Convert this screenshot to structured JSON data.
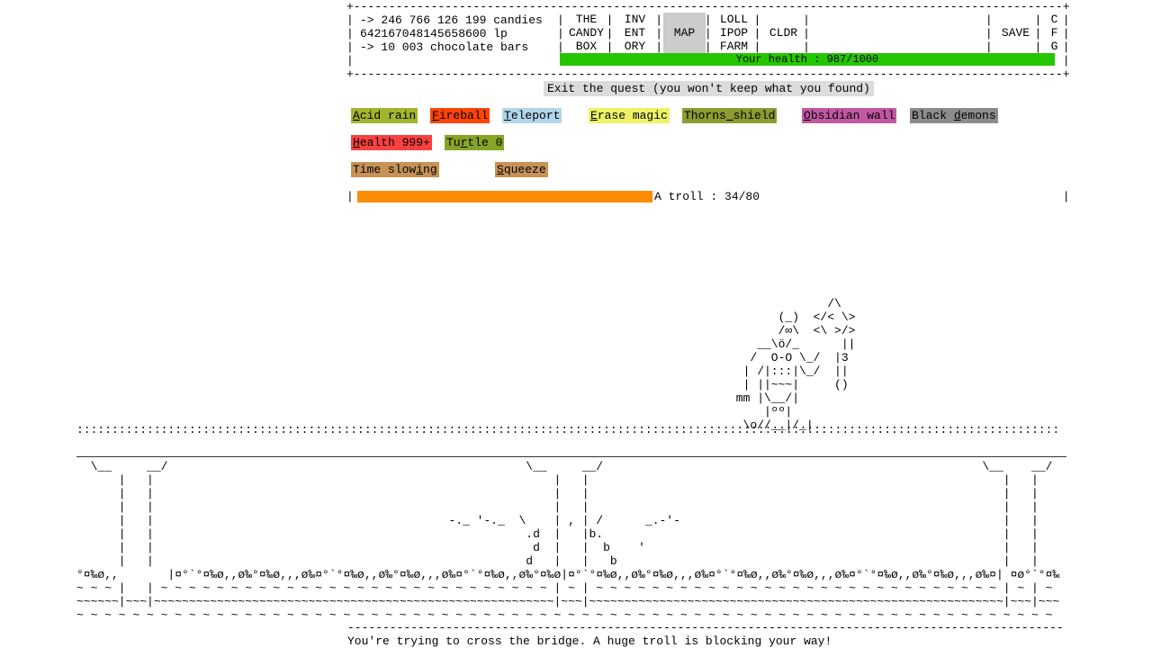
{
  "hud": {
    "resources_text": "-> 246 766 126 199 candies\n642167048145658600 lp\n-> 10 003 chocolate bars",
    "tabs": [
      {
        "id": "the-candy-box",
        "label": "THE\nCANDY\nBOX"
      },
      {
        "id": "inventory",
        "label": "INV\nENT\nORY"
      },
      {
        "id": "map",
        "label": "MAP",
        "active": true
      },
      {
        "id": "lollipop-farm",
        "label": "LOLL\nIPOP\nFARM"
      },
      {
        "id": "cauldron",
        "label": "CLDR"
      },
      {
        "id": "save",
        "label": "SAVE"
      },
      {
        "id": "config",
        "label": "C\nF\nG"
      }
    ],
    "active_tab_bg": "#cccccc",
    "health": {
      "label": "Your health : 987/1000",
      "color": "#25c600"
    }
  },
  "quest": {
    "exit_label": "Exit the quest (you won't keep what you found)",
    "enemy": {
      "label": "A troll : 34/80",
      "hp": 34,
      "hp_max": 80,
      "bar_color": "#ff8c00"
    },
    "message": "You're trying to cross the bridge. A huge troll is blocking your way!"
  },
  "spells": [
    {
      "id": "acid-rain",
      "label": "Acid rain",
      "key_index": 0,
      "color": "#a3b52c"
    },
    {
      "id": "fireball",
      "label": "Fireball",
      "key_index": 0,
      "color": "#ff4505"
    },
    {
      "id": "teleport",
      "label": "Teleport",
      "key_index": 0,
      "color": "#b2d6e9"
    },
    {
      "id": "erase-magic",
      "label": "Erase magic",
      "key_index": 0,
      "color": "#eef266"
    },
    {
      "id": "thorns-shield",
      "label": "Thorns shield",
      "key_index": 6,
      "color": "#8d9b31"
    },
    {
      "id": "obsidian-wall",
      "label": "Obsidian wall",
      "key_index": 0,
      "color": "#c158a2"
    },
    {
      "id": "black-demons",
      "label": "Black demons",
      "key_index": 6,
      "color": "#8c8c8c"
    },
    {
      "id": "health-999",
      "label": "Health 999+",
      "key_index": 0,
      "color": "#fb4040"
    },
    {
      "id": "turtle-0",
      "label": "Turtle 0",
      "key_index": 2,
      "color": "#87a425"
    },
    {
      "id": "time-slowing",
      "label": "Time slowing",
      "key_index": 9,
      "color": "#c69257"
    },
    {
      "id": "squeeze",
      "label": "Squeeze",
      "key_index": 0,
      "color": "#c69257"
    }
  ],
  "ascii": {
    "hud_frame": {
      "cols": 103,
      "rows": [
        [
          [
            0,
            "+"
          ],
          [
            1,
            "-",
            101
          ],
          [
            102,
            "+"
          ]
        ],
        [
          [
            0,
            "|"
          ],
          [
            30,
            "|"
          ],
          [
            37,
            "|"
          ],
          [
            44,
            "|"
          ],
          [
            51,
            "|"
          ],
          [
            58,
            "|"
          ],
          [
            65,
            "|"
          ],
          [
            91,
            "|"
          ],
          [
            98,
            "|"
          ],
          [
            102,
            "|"
          ]
        ],
        [
          [
            0,
            "|"
          ],
          [
            30,
            "|"
          ],
          [
            37,
            "|"
          ],
          [
            44,
            "|"
          ],
          [
            51,
            "|"
          ],
          [
            58,
            "|"
          ],
          [
            65,
            "|"
          ],
          [
            91,
            "|"
          ],
          [
            98,
            "|"
          ],
          [
            102,
            "|"
          ]
        ],
        [
          [
            0,
            "|"
          ],
          [
            30,
            "|"
          ],
          [
            37,
            "|"
          ],
          [
            44,
            "|"
          ],
          [
            51,
            "|"
          ],
          [
            58,
            "|"
          ],
          [
            65,
            "|"
          ],
          [
            91,
            "|"
          ],
          [
            98,
            "|"
          ],
          [
            102,
            "|"
          ]
        ],
        [
          [
            0,
            "|"
          ],
          [
            102,
            "|"
          ]
        ],
        [
          [
            0,
            "+"
          ],
          [
            1,
            "-",
            101
          ],
          [
            102,
            "+"
          ]
        ]
      ]
    },
    "enemy_row": {
      "cols": 103,
      "rows": [
        [
          [
            0,
            "|"
          ],
          [
            102,
            "|"
          ]
        ]
      ]
    },
    "troll": {
      "cols": 18,
      "rows": [
        [
          [
            0,
            "              /\\"
          ]
        ],
        [
          [
            0,
            "       (_)  </< \\>"
          ]
        ],
        [
          [
            0,
            "       /∞\\  <\\ >/>"
          ]
        ],
        [
          [
            0,
            "    __\\ö/_      ||"
          ]
        ],
        [
          [
            0,
            "   /  O-O \\_/  |3"
          ]
        ],
        [
          [
            0,
            "  | /|:::|\\_/  ||"
          ]
        ],
        [
          [
            0,
            "  | ||~~~|     ()"
          ]
        ],
        [
          [
            0,
            " mm |\\__/|"
          ]
        ],
        [
          [
            0,
            "     |ºº|"
          ]
        ],
        [
          [
            0,
            "  \\o//__|/_|"
          ]
        ]
      ]
    },
    "dots": {
      "cols": 140,
      "rows": [
        [
          [
            0,
            ":",
            140
          ]
        ]
      ]
    },
    "bridge": {
      "cols": 140,
      "rows": [
        [
          [
            2,
            "\\__"
          ],
          [
            10,
            "__/"
          ],
          [
            64,
            "\\__"
          ],
          [
            72,
            "__/"
          ],
          [
            129,
            "\\__"
          ],
          [
            136,
            "__/"
          ]
        ],
        [
          [
            6,
            "|"
          ],
          [
            10,
            "|"
          ],
          [
            68,
            "|"
          ],
          [
            72,
            "|"
          ],
          [
            132,
            "|"
          ],
          [
            136,
            "|"
          ]
        ],
        [
          [
            6,
            "|"
          ],
          [
            10,
            "|"
          ],
          [
            68,
            "|"
          ],
          [
            72,
            "|"
          ],
          [
            132,
            "|"
          ],
          [
            136,
            "|"
          ]
        ],
        [
          [
            6,
            "|"
          ],
          [
            10,
            "|"
          ],
          [
            68,
            "|"
          ],
          [
            72,
            "|"
          ],
          [
            132,
            "|"
          ],
          [
            136,
            "|"
          ]
        ],
        [
          [
            6,
            "|"
          ],
          [
            10,
            "|"
          ],
          [
            68,
            "|"
          ],
          [
            72,
            "|"
          ],
          [
            132,
            "|"
          ],
          [
            136,
            "|"
          ],
          [
            53,
            "-._ '-._"
          ],
          [
            63,
            "\\"
          ],
          [
            70,
            ","
          ],
          [
            74,
            "/"
          ],
          [
            81,
            "_.-'-"
          ]
        ],
        [
          [
            6,
            "|"
          ],
          [
            10,
            "|"
          ],
          [
            68,
            "|"
          ],
          [
            72,
            "|"
          ],
          [
            132,
            "|"
          ],
          [
            136,
            "|"
          ],
          [
            64,
            ".d"
          ],
          [
            73,
            "b."
          ]
        ],
        [
          [
            6,
            "|"
          ],
          [
            10,
            "|"
          ],
          [
            68,
            "|"
          ],
          [
            72,
            "|"
          ],
          [
            132,
            "|"
          ],
          [
            136,
            "|"
          ],
          [
            65,
            "d"
          ],
          [
            75,
            "b"
          ],
          [
            80,
            "'"
          ]
        ],
        [
          [
            6,
            "|"
          ],
          [
            10,
            "|"
          ],
          [
            68,
            "|"
          ],
          [
            72,
            "|"
          ],
          [
            132,
            "|"
          ],
          [
            136,
            "|"
          ],
          [
            64,
            "d"
          ],
          [
            76,
            "b"
          ]
        ],
        [
          [
            0,
            "°¤‰ø,,"
          ],
          [
            13,
            "|"
          ],
          [
            14,
            "¤°`°¤‰ø,,ø‰°¤‰ø,,,ø‰",
            2
          ],
          [
            54,
            "¤°`°¤‰ø,,ø‰°¤‰ø"
          ],
          [
            69,
            "|"
          ],
          [
            70,
            "¤°`°¤‰ø,,ø‰°¤‰ø,,,ø‰",
            3
          ],
          [
            130,
            "¤"
          ],
          [
            131,
            "|"
          ],
          [
            132,
            " ¤ø°`°¤‰"
          ]
        ],
        [
          [
            0,
            "~ ~ ~ "
          ],
          [
            6,
            "|"
          ],
          [
            10,
            "|"
          ],
          [
            11,
            " ~",
            28
          ],
          [
            68,
            "|"
          ],
          [
            69,
            " ~ "
          ],
          [
            72,
            "|"
          ],
          [
            73,
            " ~",
            29
          ],
          [
            132,
            "|"
          ],
          [
            133,
            " ~ "
          ],
          [
            136,
            "|"
          ],
          [
            137,
            " ~ "
          ]
        ],
        [
          [
            0,
            "~",
            6
          ],
          [
            6,
            "|"
          ],
          [
            7,
            "~",
            3
          ],
          [
            10,
            "|"
          ],
          [
            11,
            "~",
            57
          ],
          [
            68,
            "|"
          ],
          [
            69,
            "~",
            3
          ],
          [
            72,
            "|"
          ],
          [
            73,
            "~",
            59
          ],
          [
            132,
            "|"
          ],
          [
            133,
            "~",
            3
          ],
          [
            136,
            "|"
          ],
          [
            137,
            "~",
            3
          ]
        ],
        [
          [
            0,
            "~ ",
            70
          ]
        ]
      ]
    },
    "bottom_rule": {
      "cols": 102,
      "rows": [
        [
          [
            0,
            "-",
            102
          ]
        ]
      ]
    }
  }
}
